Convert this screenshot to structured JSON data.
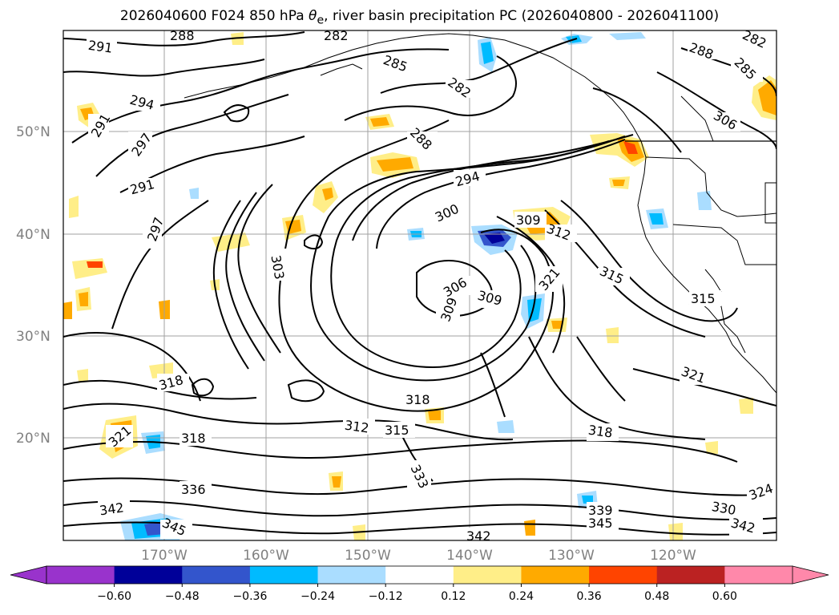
{
  "title_main": "2026040600 F024 850 hPa ",
  "title_var": "θ",
  "title_sub": "e",
  "title_rest": ", river basin precipitation PC (2026040800 - 2026041100)",
  "lat_labels": [
    "50°N",
    "40°N",
    "30°N",
    "20°N"
  ],
  "lon_labels": [
    "170°W",
    "160°W",
    "150°W",
    "140°W",
    "130°W",
    "120°W"
  ],
  "colorbar": {
    "colors": [
      "#9933cc",
      "#000099",
      "#3355cc",
      "#00bbff",
      "#aaddff",
      "#ffffff",
      "#ffee88",
      "#ffaa00",
      "#ff4400",
      "#bb2222",
      "#ff88aa"
    ],
    "under_color": "#9933cc",
    "over_color": "#ff88aa",
    "tick_labels": [
      "−0.60",
      "−0.48",
      "−0.36",
      "−0.24",
      "−0.12",
      "0.12",
      "0.24",
      "0.36",
      "0.48",
      "0.60"
    ]
  },
  "contour_labels": [
    {
      "text": "291"
    },
    {
      "text": "288"
    },
    {
      "text": "282"
    },
    {
      "text": "285"
    },
    {
      "text": "282"
    },
    {
      "text": "288"
    },
    {
      "text": "282"
    },
    {
      "text": "285"
    },
    {
      "text": "294"
    },
    {
      "text": "291"
    },
    {
      "text": "297"
    },
    {
      "text": "291"
    },
    {
      "text": "297"
    },
    {
      "text": "288"
    },
    {
      "text": "294"
    },
    {
      "text": "300"
    },
    {
      "text": "303"
    },
    {
      "text": "309"
    },
    {
      "text": "312"
    },
    {
      "text": "306"
    },
    {
      "text": "309"
    },
    {
      "text": "309"
    },
    {
      "text": "321"
    },
    {
      "text": "315"
    },
    {
      "text": "315"
    },
    {
      "text": "306"
    },
    {
      "text": "318"
    },
    {
      "text": "318"
    },
    {
      "text": "318"
    },
    {
      "text": "312"
    },
    {
      "text": "315"
    },
    {
      "text": "321"
    },
    {
      "text": "318"
    },
    {
      "text": "333"
    },
    {
      "text": "336"
    },
    {
      "text": "342"
    },
    {
      "text": "345"
    },
    {
      "text": "339"
    },
    {
      "text": "345"
    },
    {
      "text": "342"
    },
    {
      "text": "330"
    },
    {
      "text": "324"
    },
    {
      "text": "342"
    },
    {
      "text": "321"
    }
  ]
}
